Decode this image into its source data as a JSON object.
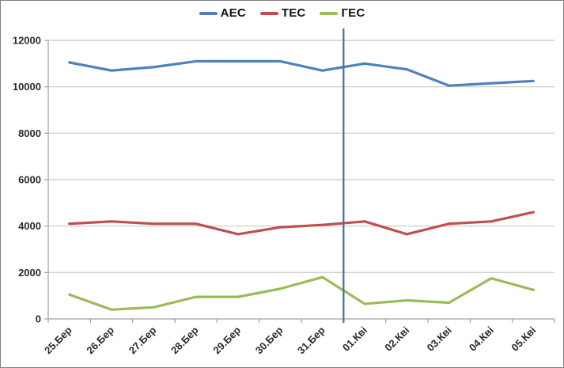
{
  "chart_data": {
    "type": "line",
    "title": "",
    "xlabel": "",
    "ylabel": "",
    "categories": [
      "25.Бер",
      "26.Бер",
      "27.Бер",
      "28.Бер",
      "29.Бер",
      "30.Бер",
      "31.Бер",
      "01.Кві",
      "02.Кві",
      "03.Кві",
      "04.Кві",
      "05.Кві"
    ],
    "series": [
      {
        "name": "АЕС",
        "color": "#4F81BD",
        "values": [
          11050,
          10700,
          10850,
          11100,
          11100,
          11100,
          10700,
          11000,
          10750,
          10050,
          10150,
          10250
        ]
      },
      {
        "name": "ТЕС",
        "color": "#C0504D",
        "values": [
          4100,
          4200,
          4100,
          4100,
          3650,
          3950,
          4050,
          4200,
          3650,
          4100,
          4200,
          4600
        ]
      },
      {
        "name": "ГЕС",
        "color": "#9BBB59",
        "values": [
          1050,
          400,
          500,
          950,
          950,
          1300,
          1800,
          650,
          800,
          700,
          1750,
          1250
        ]
      }
    ],
    "ylim": [
      0,
      12000
    ],
    "y_ticks": [
      0,
      2000,
      4000,
      6000,
      8000,
      10000,
      12000
    ],
    "grid": true,
    "legend_position": "top-center",
    "x_labels_rotated_degrees": 45,
    "annotations": [
      {
        "type": "vline",
        "after_category": "31.Бер",
        "color": "#41719C"
      }
    ]
  },
  "colors": {
    "background": "#FFFFFF",
    "border": "#7F7F7F",
    "gridline": "#C8C8C8",
    "axis": "#A0A0A0",
    "text": "#2B2B2B"
  }
}
